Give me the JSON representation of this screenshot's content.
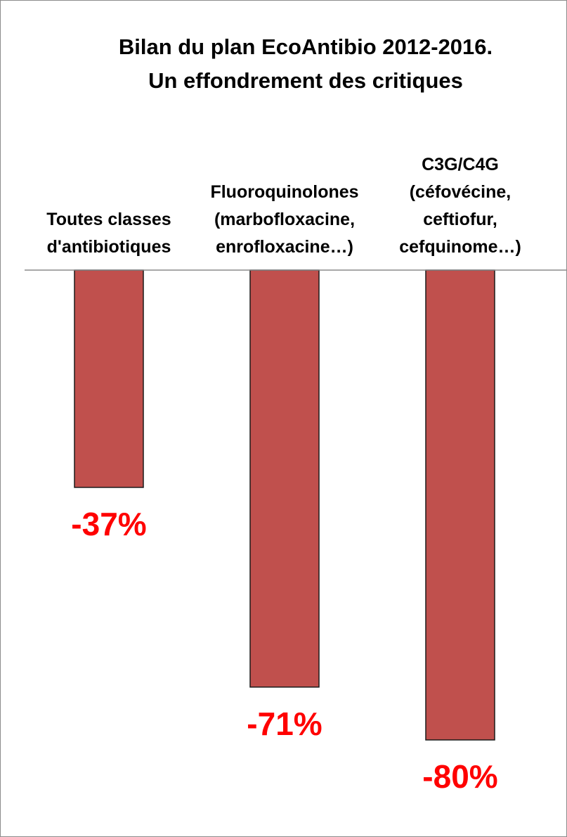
{
  "chart_data": {
    "type": "bar",
    "title_lines": [
      "Bilan du plan EcoAntibio 2012-2016.",
      "Un effondrement des critiques"
    ],
    "categories": [
      [
        "Toutes classes",
        "d'antibiotiques"
      ],
      [
        "Fluoroquinolones",
        "(marbofloxacine,",
        "enrofloxacine…)"
      ],
      [
        "C3G/C4G",
        "(céfovécine,",
        "ceftiofur,",
        "cefquinome…)"
      ]
    ],
    "values": [
      -37,
      -71,
      -80
    ],
    "value_labels": [
      "-37%",
      "-71%",
      "-80%"
    ],
    "unit": "%",
    "ylim": [
      -100,
      0
    ],
    "grid": false,
    "legend": "none",
    "colors": {
      "bar_fill": "#C0504D",
      "bar_stroke": "#1a1a1a",
      "value_label": "#FF0000",
      "axis": "#8c8c8c"
    }
  }
}
